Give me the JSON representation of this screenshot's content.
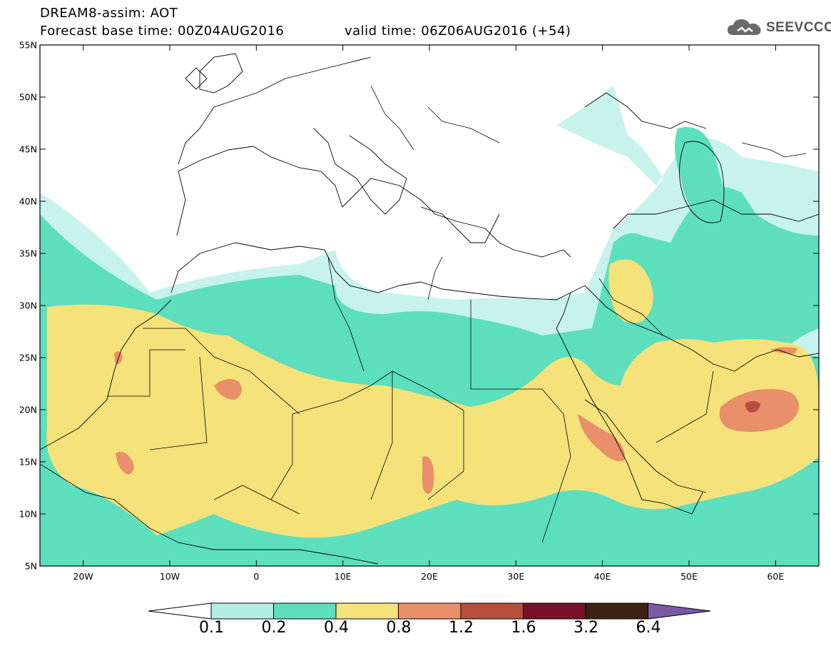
{
  "header": {
    "title": "DREAM8-assim: AOT",
    "base_time": "Forecast base time: 00Z04AUG2016",
    "valid_time": "valid time: 06Z06AUG2016 (+54)",
    "logo_text": "SEEVCCC"
  },
  "axes": {
    "lat_labels": [
      "55N",
      "50N",
      "45N",
      "40N",
      "35N",
      "30N",
      "25N",
      "20N",
      "15N",
      "10N",
      "5N"
    ],
    "lon_labels": [
      "20W",
      "10W",
      "0",
      "10E",
      "20E",
      "30E",
      "40E",
      "50E",
      "60E"
    ]
  },
  "colorbar": {
    "labels": [
      "0.1",
      "0.2",
      "0.4",
      "0.8",
      "1.2",
      "1.6",
      "3.2",
      "6.4"
    ],
    "colors": [
      "#b3ede4",
      "#5ddfbe",
      "#f6e27a",
      "#e98f69",
      "#b6503d",
      "#7a0f2a",
      "#3e2314",
      "#7a5aa6"
    ]
  },
  "map_colors": {
    "c01": "#c8f2ec",
    "c02": "#5ddfbe",
    "c04": "#f6e27a",
    "c08": "#e98f69",
    "c12": "#b6503d",
    "c16": "#7a0f2a"
  }
}
